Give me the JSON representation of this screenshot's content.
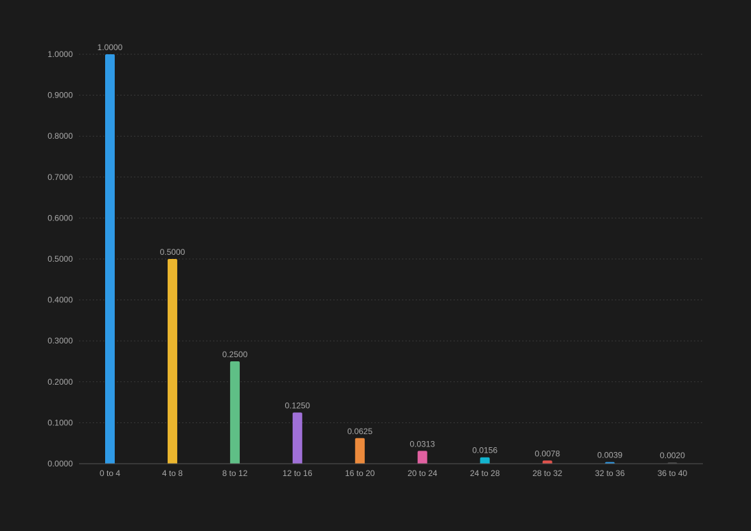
{
  "colors": {
    "background": "#1b1b1b",
    "grid": "#3a3a3a",
    "axis": "#555555",
    "text": "#a8a8a8"
  },
  "chart_data": {
    "type": "bar",
    "title": "",
    "xlabel": "",
    "ylabel": "",
    "categories": [
      "0 to 4",
      "4 to 8",
      "8 to 12",
      "12 to 16",
      "16 to 20",
      "20 to 24",
      "24 to 28",
      "28 to 32",
      "32 to 36",
      "36 to 40"
    ],
    "values": [
      1.0,
      0.5,
      0.25,
      0.125,
      0.0625,
      0.0313,
      0.0156,
      0.0078,
      0.0039,
      0.002
    ],
    "value_labels": [
      "1.0000",
      "0.5000",
      "0.2500",
      "0.1250",
      "0.0625",
      "0.0313",
      "0.0156",
      "0.0078",
      "0.0039",
      "0.0020"
    ],
    "bar_colors": [
      "#2f9ae6",
      "#ebb62e",
      "#5fbf86",
      "#a070d8",
      "#ec8a3c",
      "#e060a0",
      "#12b4cf",
      "#e0524c",
      "#2f9ae6",
      "#444444"
    ],
    "ylim": [
      0,
      1
    ],
    "yticks": [
      0,
      0.1,
      0.2,
      0.3,
      0.4,
      0.5,
      0.6,
      0.7,
      0.8,
      0.9,
      1.0
    ],
    "ytick_labels": [
      "0.0000",
      "0.1000",
      "0.2000",
      "0.3000",
      "0.4000",
      "0.5000",
      "0.6000",
      "0.7000",
      "0.8000",
      "0.9000",
      "1.0000"
    ],
    "grid": true,
    "legend": "none"
  }
}
